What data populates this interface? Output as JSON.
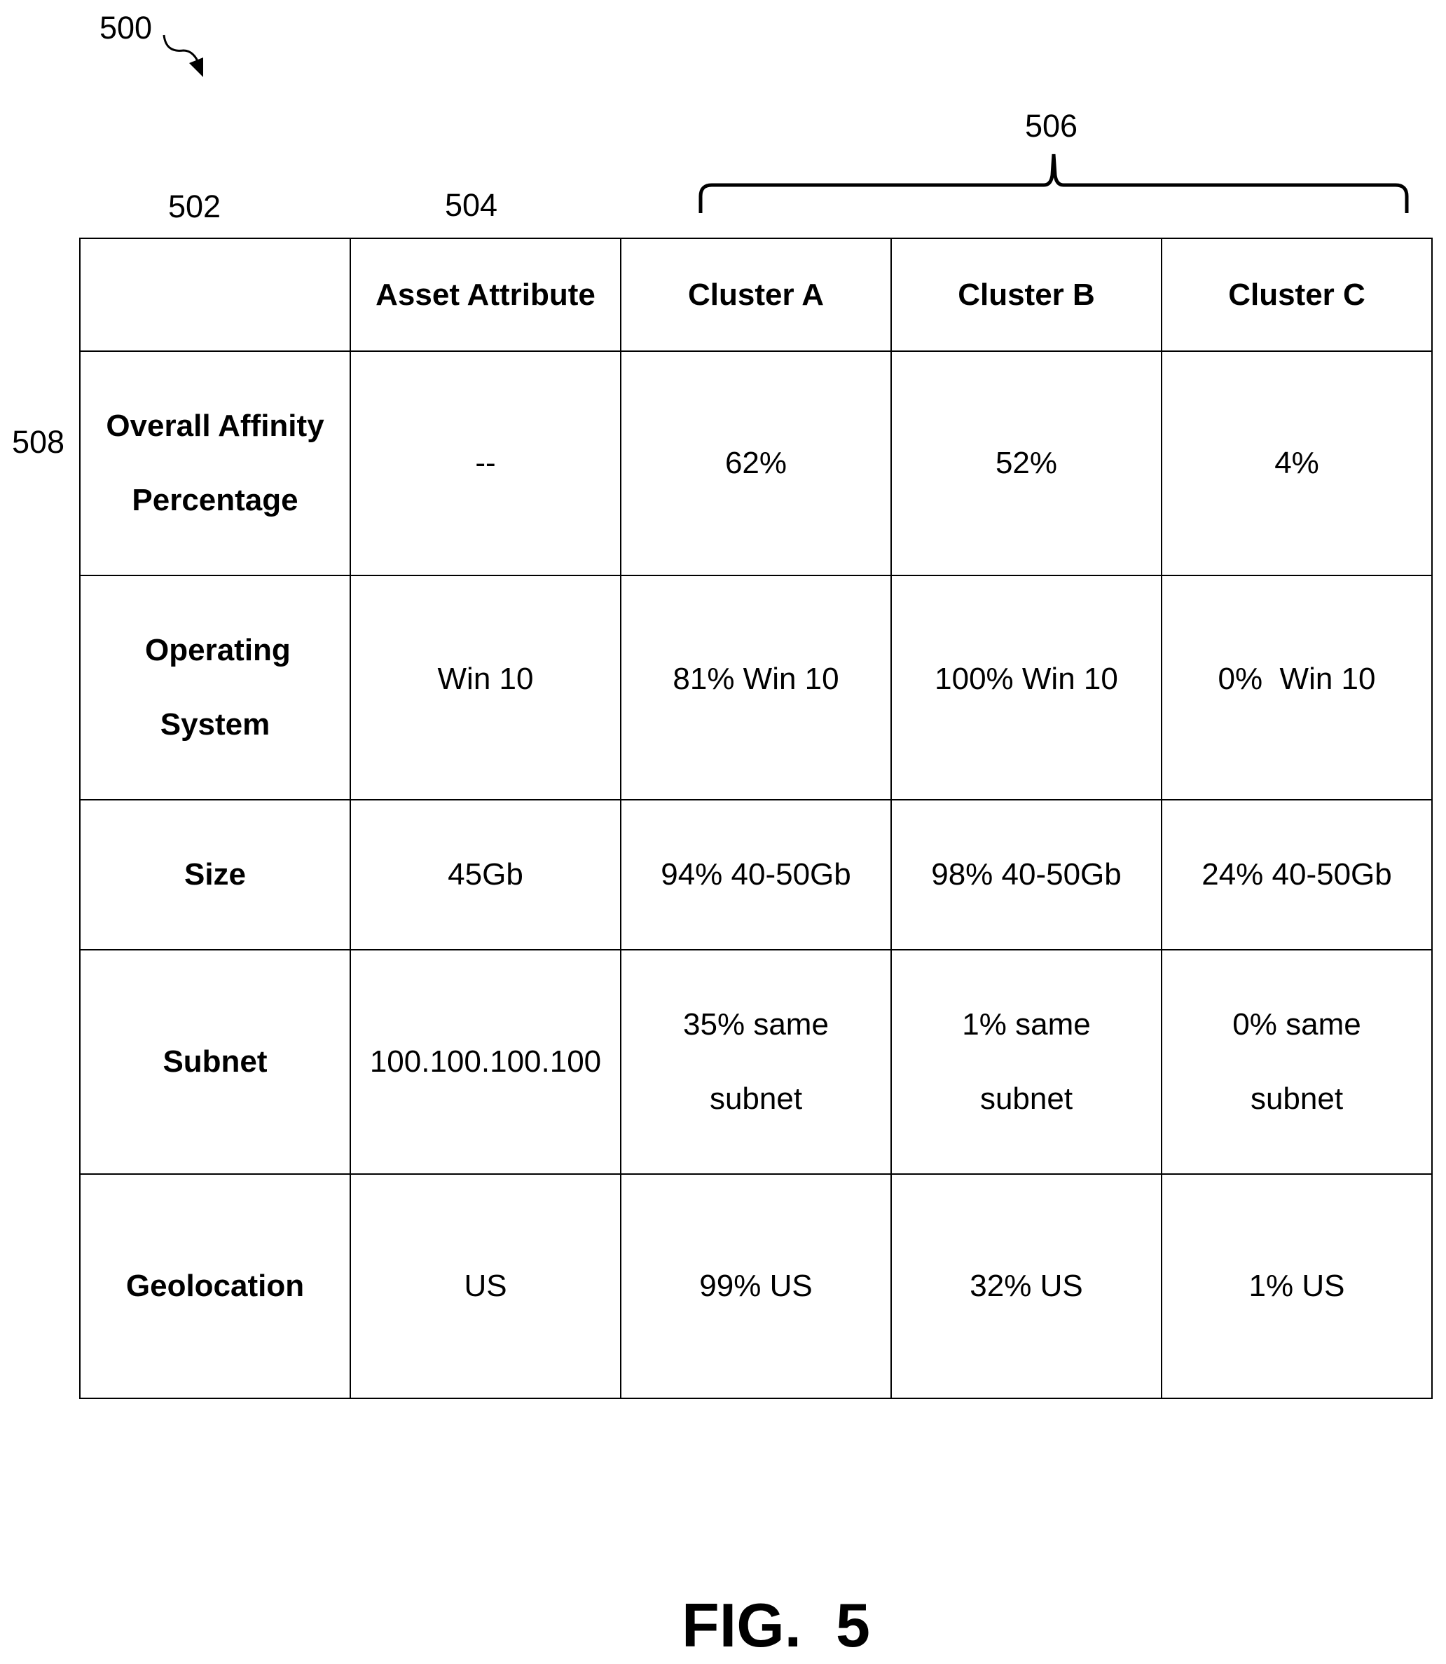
{
  "refs": {
    "figure": "500",
    "row_labels_col": "502",
    "asset_col": "504",
    "clusters_group": "506",
    "affinity_row": "508"
  },
  "table": {
    "header": [
      "",
      "Asset Attribute",
      "Cluster A",
      "Cluster B",
      "Cluster C"
    ],
    "rows": [
      {
        "label": "Overall Affinity Percentage",
        "asset": "--",
        "cluster_a": "62%",
        "cluster_b": "52%",
        "cluster_c": "4%"
      },
      {
        "label": "Operating System",
        "asset": "Win 10",
        "cluster_a": "81% Win 10",
        "cluster_b": "100% Win 10",
        "cluster_c": "0%  Win 10"
      },
      {
        "label": "Size",
        "asset": "45Gb",
        "cluster_a": "94% 40-50Gb",
        "cluster_b": "98% 40-50Gb",
        "cluster_c": "24% 40-50Gb"
      },
      {
        "label": "Subnet",
        "asset": "100.100.100.100",
        "cluster_a": "35% same subnet",
        "cluster_b": "1% same subnet",
        "cluster_c": "0% same subnet"
      },
      {
        "label": "Geolocation",
        "asset": "US",
        "cluster_a": "99% US",
        "cluster_b": "32% US",
        "cluster_c": "1% US"
      }
    ]
  },
  "figure_label": "FIG.  5"
}
